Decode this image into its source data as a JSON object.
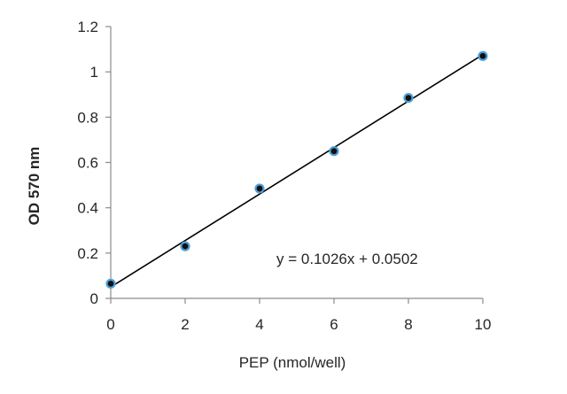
{
  "chart_data": {
    "type": "scatter",
    "xlabel": "PEP  (nmol/well)",
    "ylabel": "OD 570 nm",
    "xlim": [
      0,
      10
    ],
    "ylim": [
      0,
      1.2
    ],
    "xticks": [
      0,
      2,
      4,
      6,
      8,
      10
    ],
    "yticks": [
      0,
      0.2,
      0.4,
      0.6,
      0.8,
      1,
      1.2
    ],
    "xtick_labels": [
      "0",
      "2",
      "4",
      "6",
      "8",
      "10"
    ],
    "ytick_labels": [
      "0",
      "0.2",
      "0.4",
      "0.6",
      "0.8",
      "1",
      "1.2"
    ],
    "series": [
      {
        "x": [
          0,
          2,
          4,
          6,
          8,
          10
        ],
        "y": [
          0.065,
          0.23,
          0.485,
          0.65,
          0.885,
          1.07
        ]
      }
    ],
    "trendline": {
      "slope": 0.1026,
      "intercept": 0.0502,
      "equation": "y = 0.1026x + 0.0502"
    },
    "grid": false,
    "colors": {
      "marker_fill": "#111111",
      "marker_edge": "#4f9fd8",
      "line": "#000000",
      "axis": "#8c8c8c"
    }
  }
}
